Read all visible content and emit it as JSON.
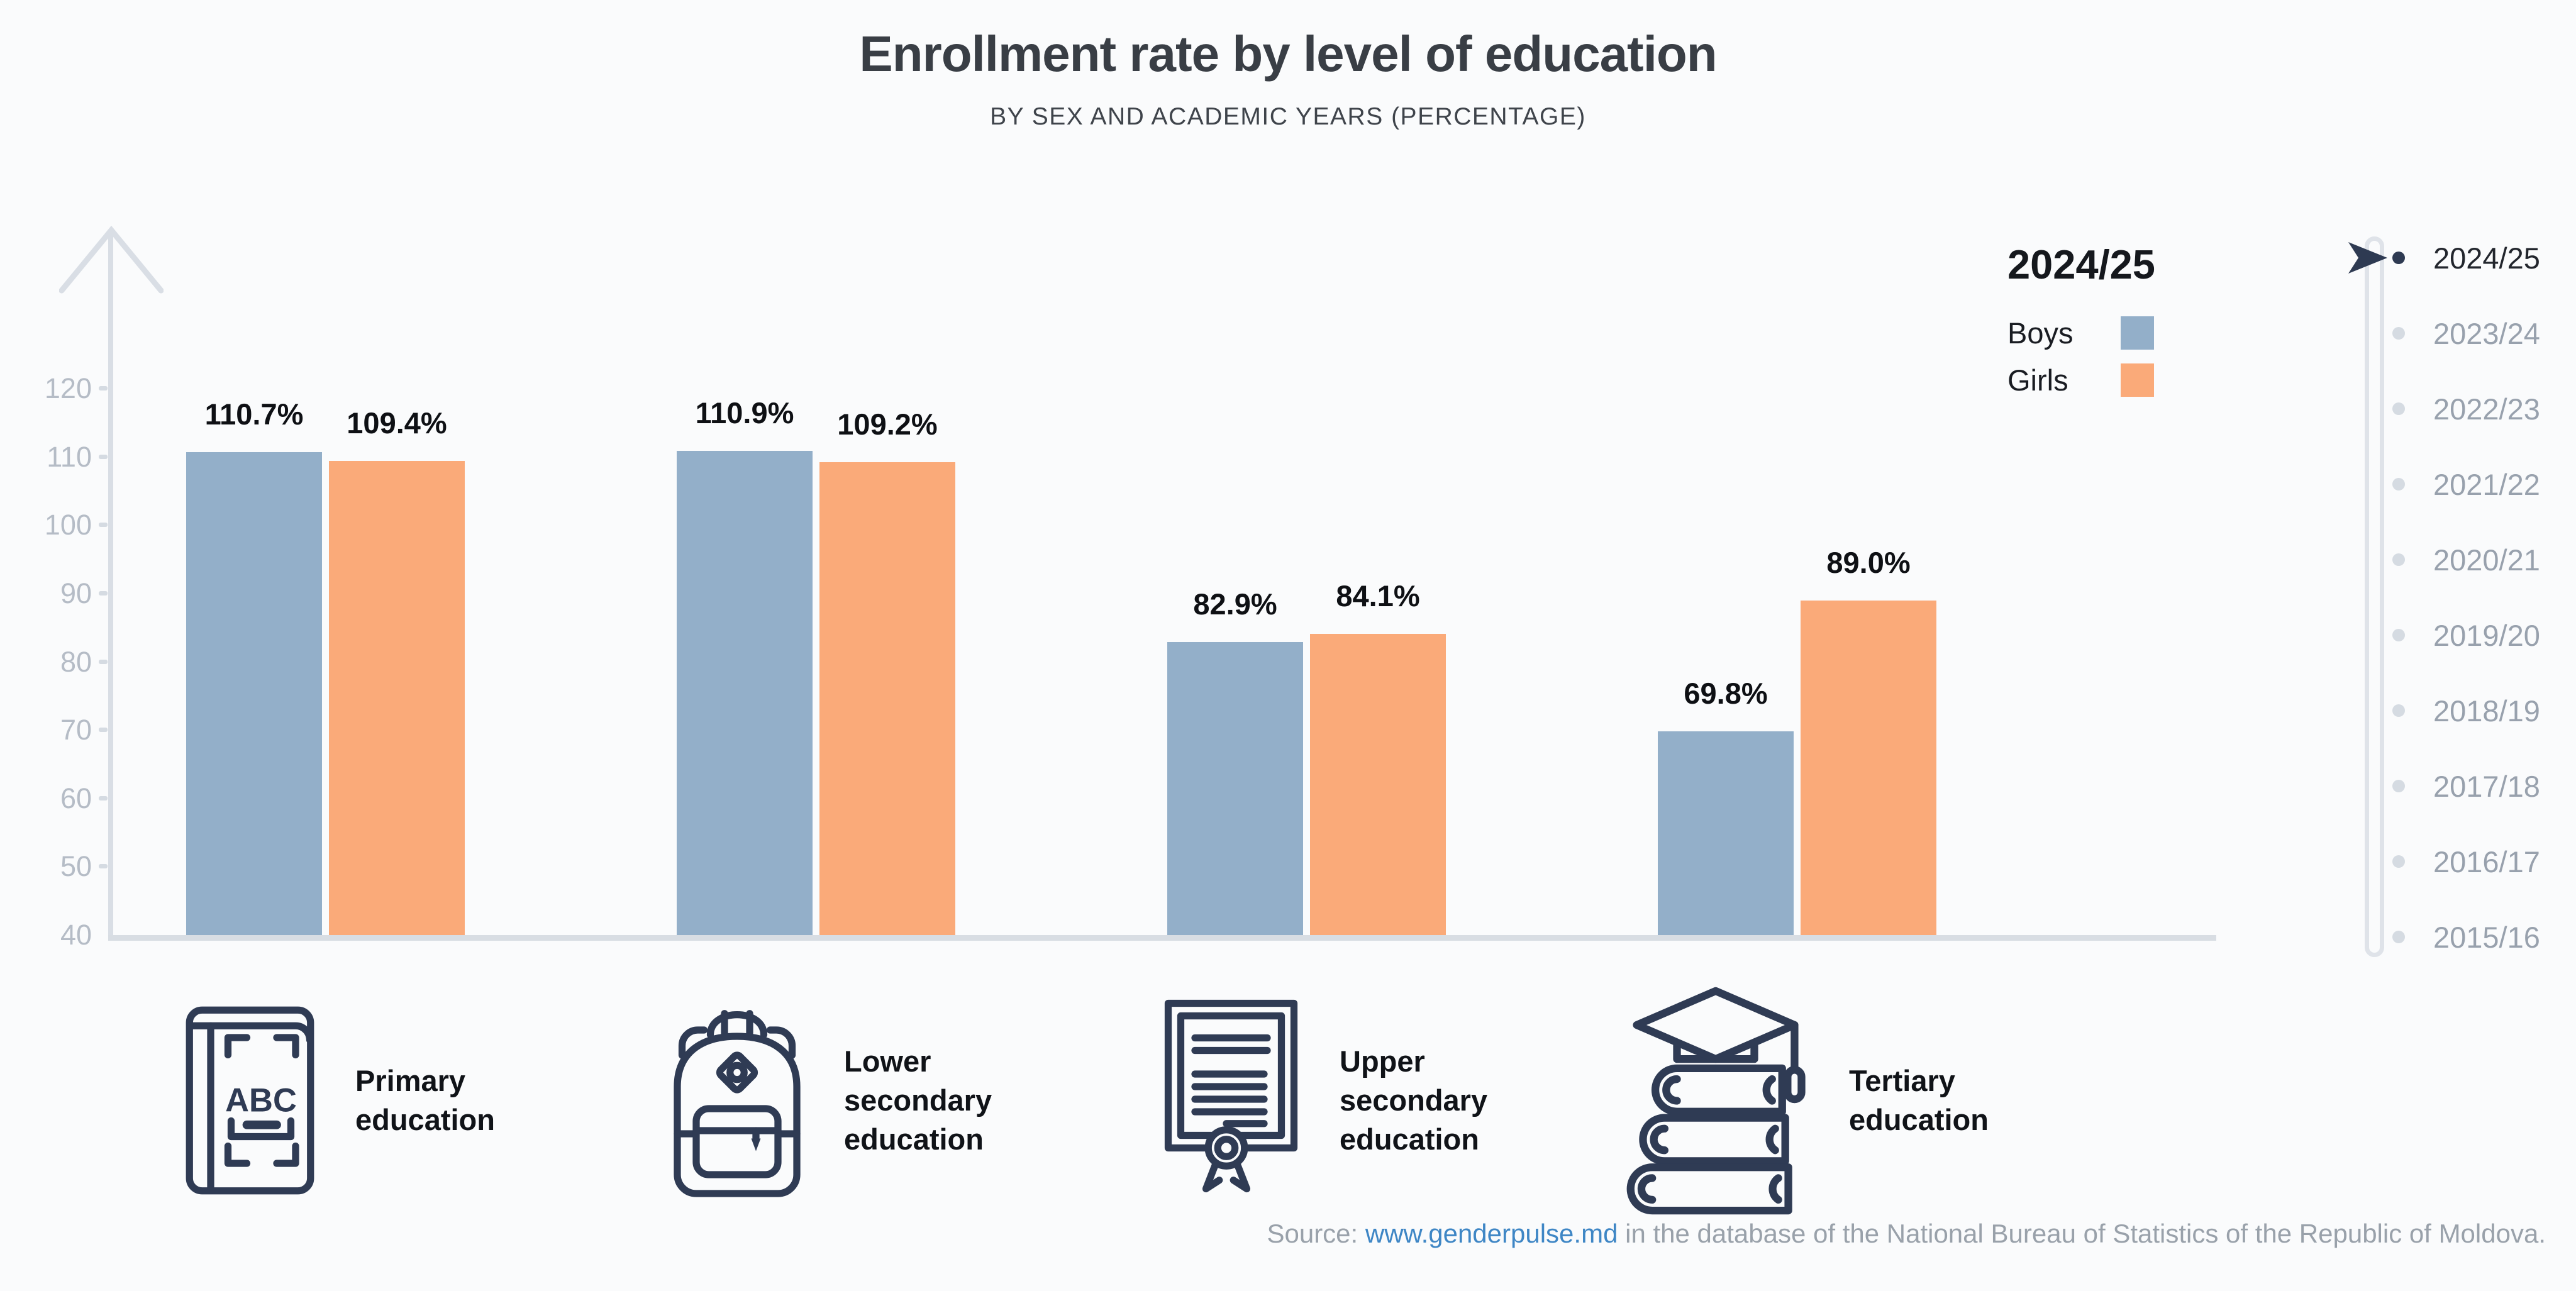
{
  "header": {
    "title": "Enrollment rate by level of education",
    "subtitle": "BY SEX AND ACADEMIC YEARS (PERCENTAGE)"
  },
  "legend": {
    "year": "2024/25",
    "series": [
      {
        "label": "Boys",
        "color": "#93afc9"
      },
      {
        "label": "Girls",
        "color": "#faaa79"
      }
    ]
  },
  "timeline": {
    "active_year": "2024/25",
    "years": [
      "2024/25",
      "2023/24",
      "2022/23",
      "2021/22",
      "2020/21",
      "2019/20",
      "2018/19",
      "2017/18",
      "2016/17",
      "2015/16"
    ]
  },
  "chart_data": {
    "type": "bar",
    "title": "Enrollment rate by level of education",
    "subtitle": "BY SEX AND ACADEMIC YEARS (PERCENTAGE)",
    "unit": "percent",
    "categories": [
      "Primary education",
      "Lower secondary education",
      "Upper secondary education",
      "Tertiary education"
    ],
    "series": [
      {
        "name": "Boys",
        "color": "#93afc9",
        "values": [
          110.7,
          110.9,
          82.9,
          69.8
        ]
      },
      {
        "name": "Girls",
        "color": "#faaa79",
        "values": [
          109.4,
          109.2,
          84.1,
          89.0
        ]
      }
    ],
    "value_suffix": "%",
    "xlabel": "",
    "ylabel": "",
    "yticks": [
      40,
      50,
      60,
      70,
      80,
      90,
      100,
      110,
      120
    ],
    "ylim": [
      40,
      130
    ],
    "baseline_value": 40,
    "grid": false,
    "legend_position": "top-right"
  },
  "category_cards": [
    {
      "label": "Primary education",
      "icon": "abc-book-icon"
    },
    {
      "label": "Lower secondary education",
      "icon": "backpack-icon"
    },
    {
      "label": "Upper secondary education",
      "icon": "diploma-icon"
    },
    {
      "label": "Tertiary education",
      "icon": "graduation-books-icon"
    }
  ],
  "source": {
    "prefix": "Source: ",
    "link_text": "www.genderpulse.md",
    "suffix": " in the database of the National Bureau of Statistics of the Republic of Moldova."
  },
  "colors": {
    "background": "#fafbfc",
    "boys": "#93afc9",
    "girls": "#faaa79",
    "navy": "#2e3a52",
    "axis": "#d9dee5",
    "tick_label": "#b5bcc6",
    "timeline_inactive_text": "#98a1ad",
    "timeline_active_text": "#22262d",
    "timeline_inactive_dot": "#d5dbe2",
    "link_blue": "#3e86c5"
  }
}
